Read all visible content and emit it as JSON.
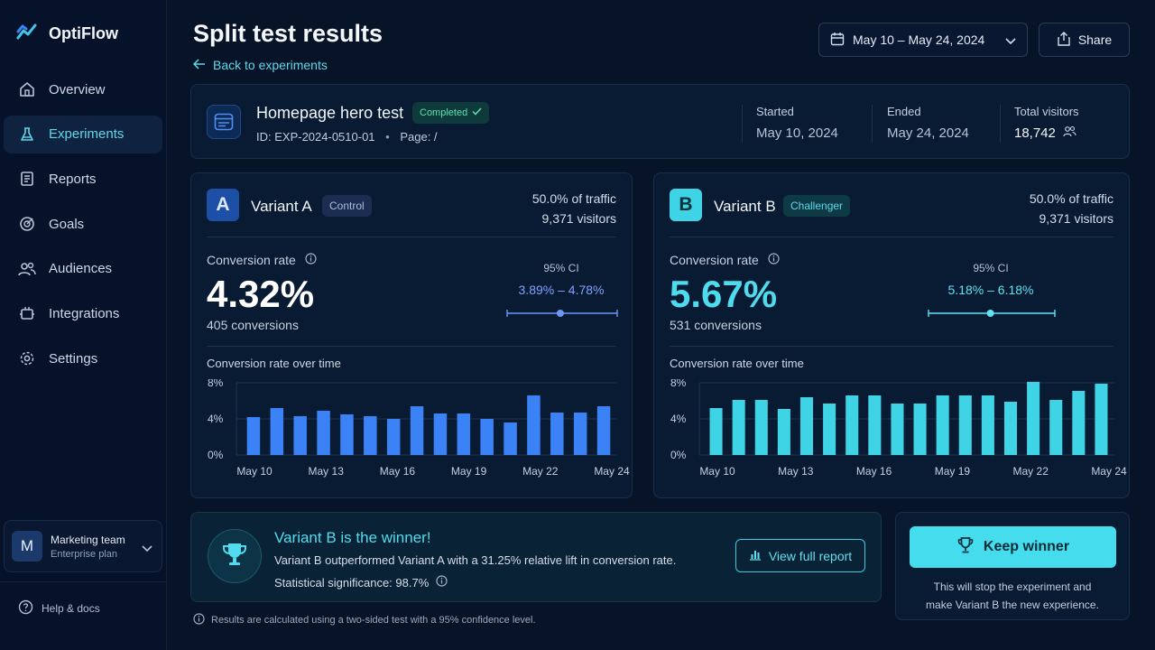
{
  "app": {
    "name": "OptiFlow"
  },
  "sidebar": {
    "items": [
      {
        "label": "Overview",
        "icon": "overview-icon",
        "active": false
      },
      {
        "label": "Experiments",
        "icon": "flask-icon",
        "active": true
      },
      {
        "label": "Reports",
        "icon": "report-icon",
        "active": false
      },
      {
        "label": "Goals",
        "icon": "target-icon",
        "active": false
      },
      {
        "label": "Audiences",
        "icon": "users-icon",
        "active": false
      },
      {
        "label": "Integrations",
        "icon": "plug-icon",
        "active": false
      },
      {
        "label": "Settings",
        "icon": "gear-icon",
        "active": false
      }
    ],
    "team": {
      "initial": "M",
      "name": "Marketing team",
      "plan": "Enterprise plan"
    },
    "help_label": "Help & docs"
  },
  "header": {
    "title": "Split test results",
    "back_label": "Back to experiments",
    "date_range": "May 10 – May 24, 2024",
    "share_label": "Share"
  },
  "experiment": {
    "name": "Homepage hero test",
    "status": "Completed",
    "id_text": "ID: EXP-2024-0510-01",
    "page_text": "Page: /",
    "started_label": "Started",
    "started_value": "May 10, 2024",
    "ended_label": "Ended",
    "ended_value": "May 24, 2024",
    "visitors_label": "Total visitors",
    "visitors_value": "18,742"
  },
  "variants": {
    "a": {
      "letter": "A",
      "name": "Variant A",
      "badge": "Control",
      "traffic": "50.0% of traffic",
      "visitors": "9,371 visitors",
      "cr_label": "Conversion rate",
      "cr_value": "4.32%",
      "conversions": "405 conversions",
      "ci_label": "95% CI",
      "ci_range": "3.89% – 4.78%",
      "chart_title": "Conversion rate over time"
    },
    "b": {
      "letter": "B",
      "name": "Variant B",
      "badge": "Challenger",
      "traffic": "50.0% of traffic",
      "visitors": "9,371 visitors",
      "cr_label": "Conversion rate",
      "cr_value": "5.67%",
      "conversions": "531 conversions",
      "ci_label": "95% CI",
      "ci_range": "5.18% – 6.18%",
      "chart_title": "Conversion rate over time"
    }
  },
  "chart_data": [
    {
      "type": "bar",
      "title": "Conversion rate over time",
      "x_tick_labels": [
        "May 10",
        "May 13",
        "May 16",
        "May 19",
        "May 22",
        "May 24"
      ],
      "y_tick_labels": [
        "8%",
        "4%",
        "0%"
      ],
      "ylim": [
        0,
        8
      ],
      "series": [
        {
          "values": [
            4.2,
            5.2,
            4.3,
            4.9,
            4.5,
            4.3,
            4.0,
            5.4,
            4.6,
            4.6,
            4.0,
            3.6,
            6.6,
            4.7,
            4.7,
            5.4
          ]
        }
      ],
      "color": "#3b82f6"
    },
    {
      "type": "bar",
      "title": "Conversion rate over time",
      "x_tick_labels": [
        "May 10",
        "May 13",
        "May 16",
        "May 19",
        "May 22",
        "May 24"
      ],
      "y_tick_labels": [
        "8%",
        "4%",
        "0%"
      ],
      "ylim": [
        0,
        8
      ],
      "series": [
        {
          "values": [
            5.2,
            6.1,
            6.1,
            5.1,
            6.4,
            5.7,
            6.6,
            6.6,
            5.7,
            5.7,
            6.6,
            6.6,
            6.6,
            5.9,
            8.1,
            6.1,
            7.1,
            7.9
          ]
        }
      ],
      "color": "#3fd3e6"
    }
  ],
  "ci_data": {
    "a": {
      "low": 3.89,
      "point": 4.32,
      "high": 4.78
    },
    "b": {
      "low": 5.18,
      "point": 5.67,
      "high": 6.18
    }
  },
  "winner": {
    "title": "Variant B is the winner!",
    "description": "Variant B outperformed Variant A with a 31.25% relative lift in conversion rate.",
    "significance": "Statistical significance: 98.7%",
    "report_label": "View full report"
  },
  "keep": {
    "label": "Keep winner",
    "desc_line1": "This will stop the experiment and",
    "desc_line2": "make Variant B the new experience."
  },
  "footnote": "Results are calculated using a two-sided test with a 95% confidence level.",
  "colors": {
    "accent": "#45dcee",
    "variant_a": "#3b82f6",
    "variant_b": "#3fd3e6",
    "background": "#071327"
  }
}
